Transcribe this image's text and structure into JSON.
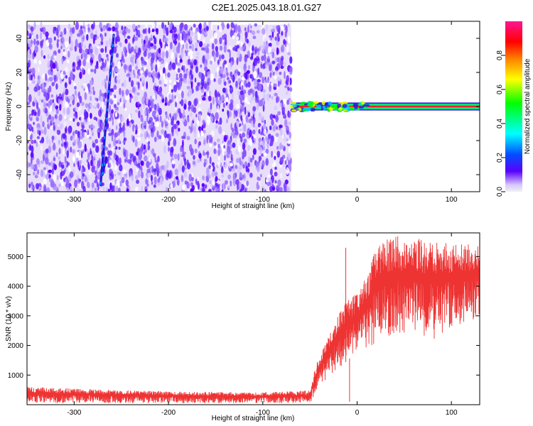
{
  "title": "C2E1.2025.043.18.01.G27",
  "chart_data": [
    {
      "type": "heatmap",
      "xlabel": "Height of straight line (km)",
      "ylabel": "Frequency (Hz)",
      "xlim": [
        -350,
        130
      ],
      "ylim": [
        -50,
        50
      ],
      "xticks": [
        -300,
        -200,
        -100,
        0,
        100
      ],
      "yticks": [
        -40,
        -20,
        0,
        20,
        40
      ],
      "grid": false,
      "regions": [
        {
          "kind": "noise",
          "x_range": [
            -350,
            -70
          ],
          "y_range": [
            -50,
            48
          ],
          "level": 0.12
        },
        {
          "kind": "carrier",
          "x_range": [
            -70,
            130
          ],
          "y_center": 0,
          "half_width_hz": 1.5,
          "level": 1.0
        }
      ],
      "features": [
        {
          "kind": "streak",
          "from": [
            -272,
            -46
          ],
          "to": [
            -258,
            42
          ]
        },
        {
          "kind": "streak",
          "from": [
            -270,
            -40
          ],
          "to": [
            -266,
            -30
          ]
        }
      ],
      "colorbar": {
        "label": "Normalized spectral amplitude",
        "ticks": [
          0.0,
          0.2,
          0.4,
          0.6,
          0.8
        ],
        "range": [
          0,
          1
        ],
        "colors": [
          "#f0f0f0",
          "#5a00ff",
          "#00ffff",
          "#00ff00",
          "#ffff00",
          "#ff8000",
          "#ff0000",
          "#ff1493"
        ]
      }
    },
    {
      "type": "line",
      "xlabel": "Height of straight line (km)",
      "ylabel": "SNR (10 * v/v)",
      "xlim": [
        -350,
        130
      ],
      "ylim": [
        0,
        5800
      ],
      "xticks": [
        -300,
        -200,
        -100,
        0,
        100
      ],
      "yticks": [
        1000,
        2000,
        3000,
        4000,
        5000
      ],
      "grid": false,
      "series": [
        {
          "color": "#ee3333",
          "envelope": [
            {
              "x": -350,
              "lo": 50,
              "hi": 600
            },
            {
              "x": -200,
              "lo": 50,
              "hi": 450
            },
            {
              "x": -100,
              "lo": 50,
              "hi": 420
            },
            {
              "x": -50,
              "lo": 50,
              "hi": 480
            },
            {
              "x": -45,
              "lo": 300,
              "hi": 1200
            },
            {
              "x": -40,
              "lo": 700,
              "hi": 1600
            },
            {
              "x": -30,
              "lo": 900,
              "hi": 2400
            },
            {
              "x": -20,
              "lo": 1200,
              "hi": 3100
            },
            {
              "x": -10,
              "lo": 1500,
              "hi": 3600
            },
            {
              "x": 0,
              "lo": 1800,
              "hi": 3800
            },
            {
              "x": 10,
              "lo": 1900,
              "hi": 4300
            },
            {
              "x": 20,
              "lo": 2000,
              "hi": 5500
            },
            {
              "x": 40,
              "lo": 2400,
              "hi": 5700
            },
            {
              "x": 60,
              "lo": 2300,
              "hi": 5650
            },
            {
              "x": 80,
              "lo": 2200,
              "hi": 5600
            },
            {
              "x": 100,
              "lo": 2500,
              "hi": 5500
            },
            {
              "x": 120,
              "lo": 2800,
              "hi": 5400
            },
            {
              "x": 130,
              "lo": 3000,
              "hi": 5400
            }
          ],
          "spikes": [
            {
              "x": -12,
              "y": 5300
            },
            {
              "x": -8,
              "y": 100
            }
          ]
        }
      ]
    }
  ]
}
